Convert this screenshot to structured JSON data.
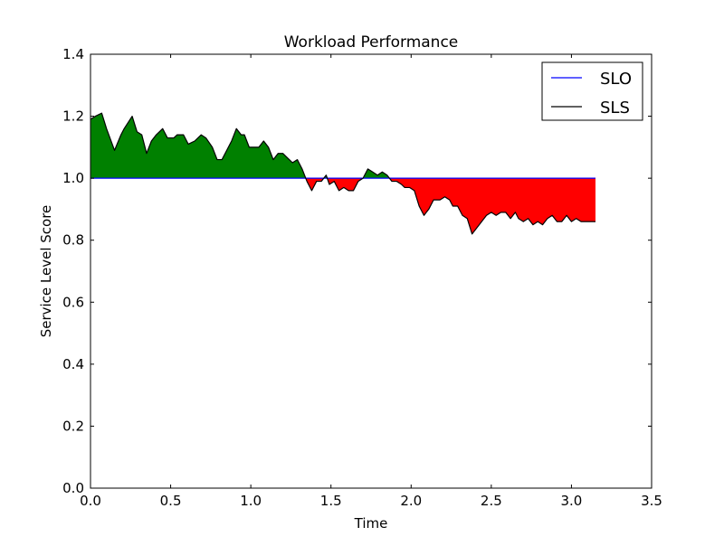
{
  "chart_data": {
    "type": "area",
    "title": "Workload Performance",
    "xlabel": "Time",
    "ylabel": "Service Level Score",
    "xlim": [
      0,
      3.5
    ],
    "ylim": [
      0,
      1.4
    ],
    "xticks": [
      0.0,
      0.5,
      1.0,
      1.5,
      2.0,
      2.5,
      3.0,
      3.5
    ],
    "yticks": [
      0.0,
      0.2,
      0.4,
      0.6,
      0.8,
      1.0,
      1.2,
      1.4
    ],
    "xtick_labels": [
      "0.0",
      "0.5",
      "1.0",
      "1.5",
      "2.0",
      "2.5",
      "3.0",
      "3.5"
    ],
    "ytick_labels": [
      "0.0",
      "0.2",
      "0.4",
      "0.6",
      "0.8",
      "1.0",
      "1.2",
      "1.4"
    ],
    "grid": false,
    "legend_position": "top-right",
    "fill_colors": {
      "above": "#008000",
      "below": "#ff0000"
    },
    "series": [
      {
        "name": "SLO",
        "color": "#0000ff",
        "x": [
          0.0,
          3.15
        ],
        "y": [
          1.0,
          1.0
        ]
      },
      {
        "name": "SLS",
        "color": "#000000",
        "x": [
          0.0,
          0.03,
          0.07,
          0.1,
          0.15,
          0.19,
          0.21,
          0.26,
          0.29,
          0.32,
          0.35,
          0.38,
          0.41,
          0.45,
          0.48,
          0.52,
          0.54,
          0.58,
          0.61,
          0.65,
          0.69,
          0.72,
          0.76,
          0.79,
          0.82,
          0.85,
          0.88,
          0.91,
          0.94,
          0.96,
          0.99,
          1.02,
          1.05,
          1.08,
          1.11,
          1.14,
          1.17,
          1.2,
          1.22,
          1.26,
          1.29,
          1.32,
          1.35,
          1.38,
          1.41,
          1.44,
          1.47,
          1.49,
          1.52,
          1.55,
          1.58,
          1.61,
          1.64,
          1.67,
          1.7,
          1.73,
          1.76,
          1.79,
          1.82,
          1.85,
          1.88,
          1.91,
          1.94,
          1.96,
          1.99,
          2.02,
          2.05,
          2.08,
          2.11,
          2.14,
          2.18,
          2.21,
          2.24,
          2.26,
          2.29,
          2.32,
          2.35,
          2.38,
          2.41,
          2.44,
          2.47,
          2.5,
          2.53,
          2.56,
          2.59,
          2.62,
          2.65,
          2.67,
          2.7,
          2.73,
          2.76,
          2.79,
          2.82,
          2.85,
          2.88,
          2.91,
          2.94,
          2.97,
          3.0,
          3.03,
          3.06,
          3.09,
          3.12,
          3.15
        ],
        "y": [
          1.19,
          1.2,
          1.21,
          1.16,
          1.09,
          1.14,
          1.16,
          1.2,
          1.15,
          1.14,
          1.08,
          1.12,
          1.14,
          1.16,
          1.13,
          1.13,
          1.14,
          1.14,
          1.11,
          1.12,
          1.14,
          1.13,
          1.1,
          1.06,
          1.06,
          1.09,
          1.12,
          1.16,
          1.14,
          1.14,
          1.1,
          1.1,
          1.1,
          1.12,
          1.1,
          1.06,
          1.08,
          1.08,
          1.07,
          1.05,
          1.06,
          1.03,
          0.99,
          0.96,
          0.99,
          0.99,
          1.01,
          0.98,
          0.99,
          0.96,
          0.97,
          0.96,
          0.96,
          0.99,
          1.0,
          1.03,
          1.02,
          1.01,
          1.02,
          1.01,
          0.99,
          0.99,
          0.98,
          0.97,
          0.97,
          0.96,
          0.91,
          0.88,
          0.9,
          0.93,
          0.93,
          0.94,
          0.93,
          0.91,
          0.91,
          0.88,
          0.87,
          0.82,
          0.84,
          0.86,
          0.88,
          0.89,
          0.88,
          0.89,
          0.89,
          0.87,
          0.89,
          0.87,
          0.86,
          0.87,
          0.85,
          0.86,
          0.85,
          0.87,
          0.88,
          0.86,
          0.86,
          0.88,
          0.86,
          0.87,
          0.86,
          0.86,
          0.86,
          0.86
        ]
      }
    ]
  }
}
